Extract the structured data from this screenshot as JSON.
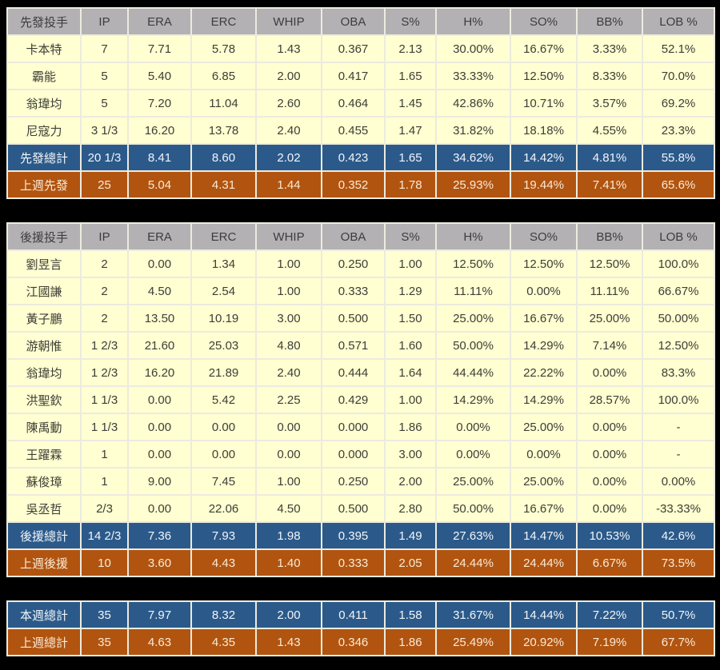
{
  "colors": {
    "background": "#000000",
    "grid_line": "#ecebdf",
    "header_bg": "#b3b1b4",
    "header_text": "#3d3d3d",
    "row_bg": "#ffffd2",
    "row_text": "#3e3e36",
    "total_bg": "#2b5a8a",
    "total_text": "#f2f5f9",
    "lastweek_bg": "#b15410",
    "lastweek_text": "#f9ead5"
  },
  "columns": [
    "IP",
    "ERA",
    "ERC",
    "WHIP",
    "OBA",
    "S%",
    "H%",
    "SO%",
    "BB%",
    "LOB %"
  ],
  "chart_data": [
    {
      "type": "table",
      "title": "先發投手",
      "columns": [
        "IP",
        "ERA",
        "ERC",
        "WHIP",
        "OBA",
        "S%",
        "H%",
        "SO%",
        "BB%",
        "LOB %"
      ],
      "rows": [
        {
          "name": "卡本特",
          "values": [
            "7",
            "7.71",
            "5.78",
            "1.43",
            "0.367",
            "2.13",
            "30.00%",
            "16.67%",
            "3.33%",
            "52.1%"
          ]
        },
        {
          "name": "霸能",
          "values": [
            "5",
            "5.40",
            "6.85",
            "2.00",
            "0.417",
            "1.65",
            "33.33%",
            "12.50%",
            "8.33%",
            "70.0%"
          ]
        },
        {
          "name": "翁瑋均",
          "values": [
            "5",
            "7.20",
            "11.04",
            "2.60",
            "0.464",
            "1.45",
            "42.86%",
            "10.71%",
            "3.57%",
            "69.2%"
          ]
        },
        {
          "name": "尼寇力",
          "values": [
            "3 1/3",
            "16.20",
            "13.78",
            "2.40",
            "0.455",
            "1.47",
            "31.82%",
            "18.18%",
            "4.55%",
            "23.3%"
          ]
        },
        {
          "name": "先發總計",
          "kind": "total",
          "values": [
            "20 1/3",
            "8.41",
            "8.60",
            "2.02",
            "0.423",
            "1.65",
            "34.62%",
            "14.42%",
            "4.81%",
            "55.8%"
          ]
        },
        {
          "name": "上週先發",
          "kind": "lastweek",
          "values": [
            "25",
            "5.04",
            "4.31",
            "1.44",
            "0.352",
            "1.78",
            "25.93%",
            "19.44%",
            "7.41%",
            "65.6%"
          ]
        }
      ]
    },
    {
      "type": "table",
      "title": "後援投手",
      "columns": [
        "IP",
        "ERA",
        "ERC",
        "WHIP",
        "OBA",
        "S%",
        "H%",
        "SO%",
        "BB%",
        "LOB %"
      ],
      "rows": [
        {
          "name": "劉昱言",
          "values": [
            "2",
            "0.00",
            "1.34",
            "1.00",
            "0.250",
            "1.00",
            "12.50%",
            "12.50%",
            "12.50%",
            "100.0%"
          ]
        },
        {
          "name": "江國謙",
          "values": [
            "2",
            "4.50",
            "2.54",
            "1.00",
            "0.333",
            "1.29",
            "11.11%",
            "0.00%",
            "11.11%",
            "66.67%"
          ]
        },
        {
          "name": "黃子鵬",
          "values": [
            "2",
            "13.50",
            "10.19",
            "3.00",
            "0.500",
            "1.50",
            "25.00%",
            "16.67%",
            "25.00%",
            "50.00%"
          ]
        },
        {
          "name": "游朝惟",
          "values": [
            "1 2/3",
            "21.60",
            "25.03",
            "4.80",
            "0.571",
            "1.60",
            "50.00%",
            "14.29%",
            "7.14%",
            "12.50%"
          ]
        },
        {
          "name": "翁瑋均",
          "values": [
            "1 2/3",
            "16.20",
            "21.89",
            "2.40",
            "0.444",
            "1.64",
            "44.44%",
            "22.22%",
            "0.00%",
            "83.3%"
          ]
        },
        {
          "name": "洪聖欽",
          "values": [
            "1 1/3",
            "0.00",
            "5.42",
            "2.25",
            "0.429",
            "1.00",
            "14.29%",
            "14.29%",
            "28.57%",
            "100.0%"
          ]
        },
        {
          "name": "陳禹動",
          "values": [
            "1 1/3",
            "0.00",
            "0.00",
            "0.00",
            "0.000",
            "1.86",
            "0.00%",
            "25.00%",
            "0.00%",
            "-"
          ]
        },
        {
          "name": "王躍霖",
          "values": [
            "1",
            "0.00",
            "0.00",
            "0.00",
            "0.000",
            "3.00",
            "0.00%",
            "0.00%",
            "0.00%",
            "-"
          ]
        },
        {
          "name": "蘇俊璋",
          "values": [
            "1",
            "9.00",
            "7.45",
            "1.00",
            "0.250",
            "2.00",
            "25.00%",
            "25.00%",
            "0.00%",
            "0.00%"
          ]
        },
        {
          "name": "吳丞哲",
          "values": [
            "2/3",
            "0.00",
            "22.06",
            "4.50",
            "0.500",
            "2.80",
            "50.00%",
            "16.67%",
            "0.00%",
            "-33.33%"
          ]
        },
        {
          "name": "後援總計",
          "kind": "total",
          "values": [
            "14 2/3",
            "7.36",
            "7.93",
            "1.98",
            "0.395",
            "1.49",
            "27.63%",
            "14.47%",
            "10.53%",
            "42.6%"
          ]
        },
        {
          "name": "上週後援",
          "kind": "lastweek",
          "values": [
            "10",
            "3.60",
            "4.43",
            "1.40",
            "0.333",
            "2.05",
            "24.44%",
            "24.44%",
            "6.67%",
            "73.5%"
          ]
        }
      ]
    },
    {
      "type": "table",
      "title": "",
      "columns": [
        "IP",
        "ERA",
        "ERC",
        "WHIP",
        "OBA",
        "S%",
        "H%",
        "SO%",
        "BB%",
        "LOB %"
      ],
      "rows": [
        {
          "name": "本週總計",
          "kind": "total",
          "values": [
            "35",
            "7.97",
            "8.32",
            "2.00",
            "0.411",
            "1.58",
            "31.67%",
            "14.44%",
            "7.22%",
            "50.7%"
          ]
        },
        {
          "name": "上週總計",
          "kind": "lastweek",
          "values": [
            "35",
            "4.63",
            "4.35",
            "1.43",
            "0.346",
            "1.86",
            "25.49%",
            "20.92%",
            "7.19%",
            "67.7%"
          ]
        }
      ]
    }
  ]
}
